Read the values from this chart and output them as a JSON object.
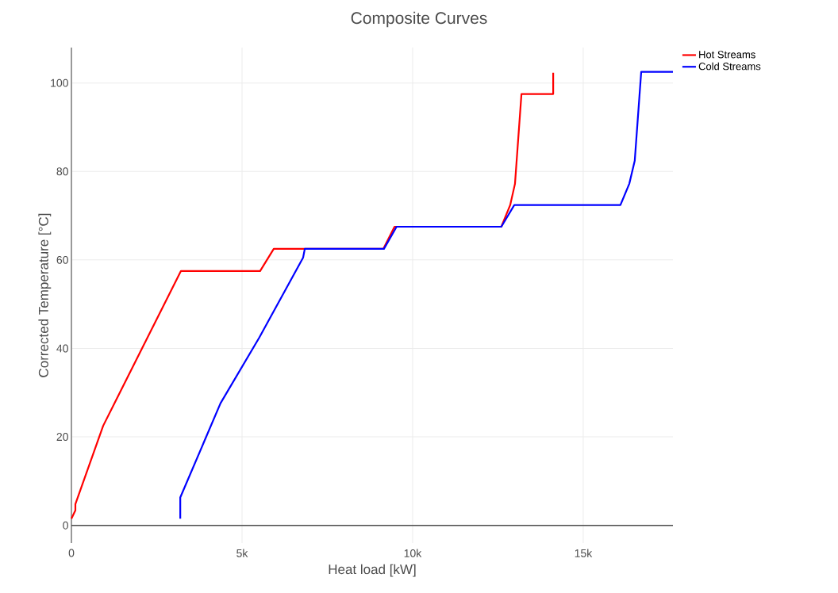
{
  "chart_data": {
    "type": "line",
    "title": "Composite Curves",
    "xlabel": "Heat load [kW]",
    "ylabel": "Corrected Temperature [°C]",
    "xlim": [
      0,
      17630
    ],
    "ylim": [
      -4,
      108
    ],
    "xticks": [
      0,
      {
        "value": 5000,
        "label": "5k"
      },
      {
        "value": 10000,
        "label": "10k"
      },
      {
        "value": 15000,
        "label": "15k"
      }
    ],
    "yticks": [
      0,
      20,
      40,
      60,
      80,
      100
    ],
    "grid": true,
    "legend": "top right",
    "line_style": "solid",
    "marker": "none",
    "series": [
      {
        "name": "Hot Streams",
        "color": "#ff0000",
        "x": [
          0,
          116,
          116,
          930,
          3210,
          5530,
          5930,
          9140,
          9470,
          12600,
          12860,
          13000,
          13190,
          14120,
          14120
        ],
        "values": [
          1.5,
          3.4,
          4.8,
          22.5,
          57.5,
          57.5,
          62.5,
          62.5,
          67.5,
          67.5,
          72.4,
          77.2,
          97.5,
          97.5,
          102.3
        ]
      },
      {
        "name": "Cold Streams",
        "color": "#0000ff",
        "x": [
          3190,
          3190,
          4370,
          5510,
          6790,
          6840,
          9160,
          9530,
          12600,
          12980,
          16090,
          16350,
          16510,
          16700,
          17630
        ],
        "values": [
          1.5,
          6.3,
          27.6,
          42.5,
          60.5,
          62.5,
          62.5,
          67.5,
          67.5,
          72.4,
          72.4,
          77.2,
          82.4,
          102.5,
          102.5
        ]
      }
    ]
  }
}
